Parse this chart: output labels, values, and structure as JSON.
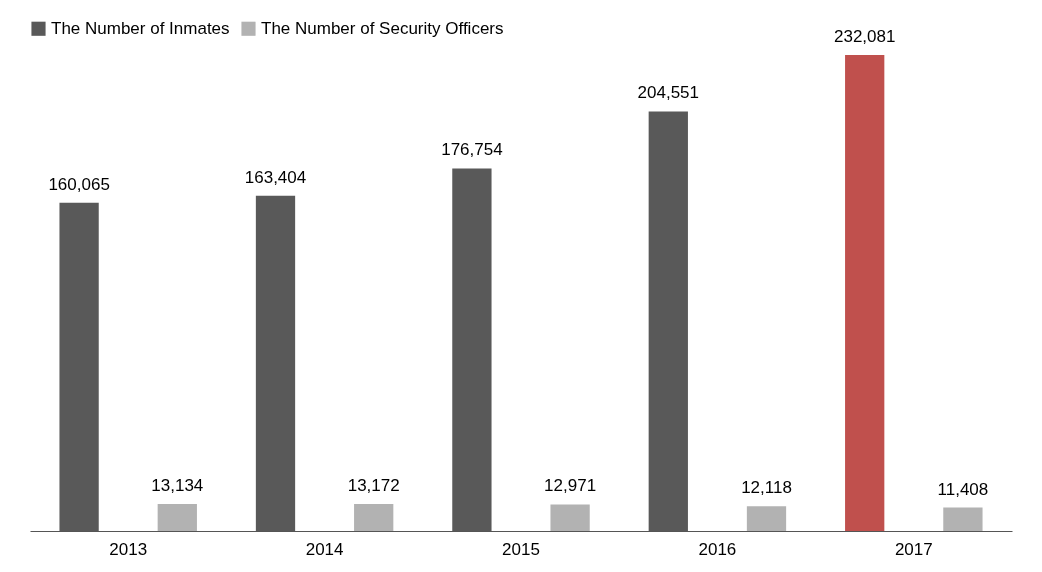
{
  "chart_data": {
    "type": "bar",
    "categories": [
      "2013",
      "2014",
      "2015",
      "2016",
      "2017"
    ],
    "series": [
      {
        "name": "The Number of Inmates",
        "color": "#595959",
        "colors": [
          "#595959",
          "#595959",
          "#595959",
          "#595959",
          "#c0504d"
        ],
        "values": [
          160065,
          163404,
          176754,
          204551,
          232081
        ],
        "value_labels": [
          "160,065",
          "163,404",
          "176,754",
          "204,551",
          "232,081"
        ]
      },
      {
        "name": "The Number of Security Officers",
        "color": "#b2b2b2",
        "values": [
          13134,
          13172,
          12971,
          12118,
          11408
        ],
        "value_labels": [
          "13,134",
          "13,172",
          "12,971",
          "12,118",
          "11,408"
        ]
      }
    ],
    "legend": "top",
    "tick_labels": "x"
  }
}
